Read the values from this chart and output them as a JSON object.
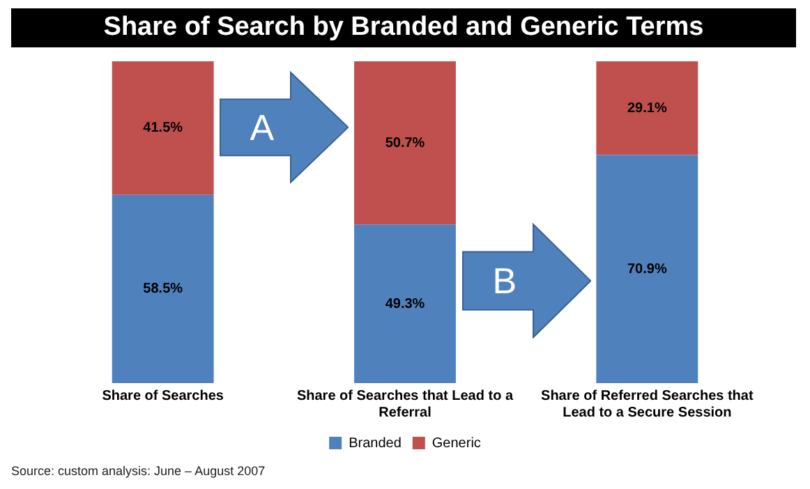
{
  "chart_data": {
    "type": "bar",
    "title": "Share of Search by Branded and Generic Terms",
    "categories": [
      "Share of Searches",
      "Share of Searches that Lead to a Referral",
      "Share of Referred Searches that Lead to a Secure Session"
    ],
    "stacked": true,
    "ylim": [
      0,
      100
    ],
    "tick_labels": "x",
    "grid": false,
    "legend": "bottom",
    "series": [
      {
        "name": "Branded",
        "color": "#4f81bd",
        "values": [
          58.5,
          49.3,
          70.9
        ],
        "value_labels": [
          "58.5%",
          "49.3%",
          "70.9%"
        ]
      },
      {
        "name": "Generic",
        "color": "#c0504d",
        "values": [
          41.5,
          50.7,
          29.1
        ],
        "value_labels": [
          "41.5%",
          "50.7%",
          "29.1%"
        ]
      }
    ],
    "annotations": [
      "A",
      "B",
      "Source: custom analysis: June – August 2007"
    ]
  }
}
